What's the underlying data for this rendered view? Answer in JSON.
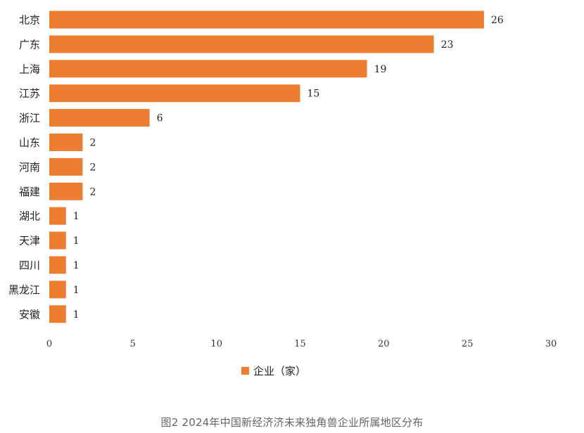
{
  "chart_data": {
    "type": "bar",
    "orientation": "horizontal",
    "categories": [
      "北京",
      "广东",
      "上海",
      "江苏",
      "浙江",
      "山东",
      "河南",
      "福建",
      "湖北",
      "天津",
      "四川",
      "黑龙江",
      "安徽"
    ],
    "series": [
      {
        "name": "企业（家）",
        "values": [
          26,
          23,
          19,
          15,
          6,
          2,
          2,
          2,
          1,
          1,
          1,
          1,
          1
        ],
        "color": "#ed7d31"
      }
    ],
    "xlim": [
      0,
      30
    ],
    "xticks": [
      0,
      5,
      10,
      15,
      20,
      25,
      30
    ],
    "grid": false,
    "legend_position": "bottom",
    "data_labels": true
  },
  "caption": "图2 2024年中国新经济济未来独角兽企业所属地区分布"
}
